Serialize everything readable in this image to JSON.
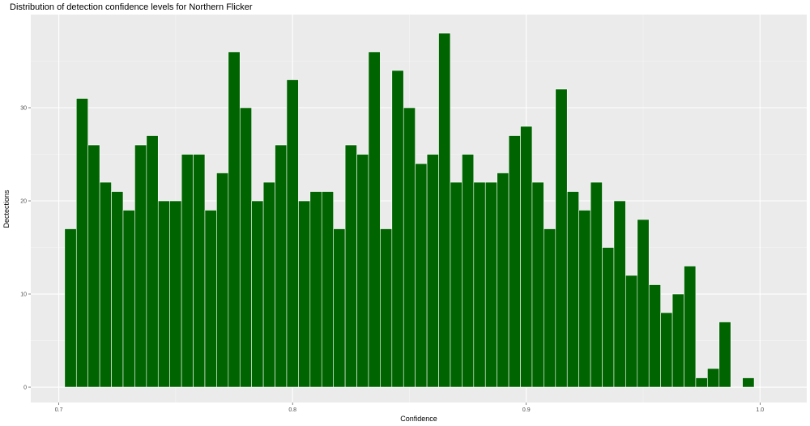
{
  "chart_data": {
    "type": "bar",
    "title": "Distribution of detection confidence levels for Northern Flicker",
    "xlabel": "Confidence",
    "ylabel": "Dectections",
    "binwidth": 0.005,
    "xlim": [
      0.688,
      1.02
    ],
    "ylim": [
      -1.65,
      40
    ],
    "xticks": [
      0.7,
      0.8,
      0.9,
      1.0
    ],
    "xtick_labels": [
      "0.7",
      "0.8",
      "0.9",
      "1.0"
    ],
    "yticks": [
      0,
      10,
      20,
      30
    ],
    "ytick_labels": [
      "0",
      "10",
      "20",
      "30"
    ],
    "grid": true,
    "bar_color": "#006400",
    "bar_outline": "#ffffff",
    "panel_background": "#ebebeb",
    "x": [
      0.705,
      0.71,
      0.715,
      0.72,
      0.725,
      0.73,
      0.735,
      0.74,
      0.745,
      0.75,
      0.755,
      0.76,
      0.765,
      0.77,
      0.775,
      0.78,
      0.785,
      0.79,
      0.795,
      0.8,
      0.805,
      0.81,
      0.815,
      0.82,
      0.825,
      0.83,
      0.835,
      0.84,
      0.845,
      0.85,
      0.855,
      0.86,
      0.865,
      0.87,
      0.875,
      0.88,
      0.885,
      0.89,
      0.895,
      0.9,
      0.905,
      0.91,
      0.915,
      0.92,
      0.925,
      0.93,
      0.935,
      0.94,
      0.945,
      0.95,
      0.955,
      0.96,
      0.965,
      0.97,
      0.975,
      0.98,
      0.985,
      0.99,
      0.995
    ],
    "values": [
      17,
      31,
      26,
      22,
      21,
      19,
      26,
      27,
      20,
      20,
      25,
      25,
      19,
      23,
      36,
      30,
      20,
      22,
      26,
      33,
      20,
      21,
      21,
      17,
      26,
      25,
      36,
      17,
      34,
      30,
      24,
      25,
      38,
      22,
      25,
      22,
      22,
      23,
      27,
      28,
      22,
      17,
      32,
      21,
      19,
      22,
      15,
      20,
      12,
      18,
      11,
      8,
      10,
      13,
      1,
      2,
      7,
      0,
      1
    ]
  }
}
